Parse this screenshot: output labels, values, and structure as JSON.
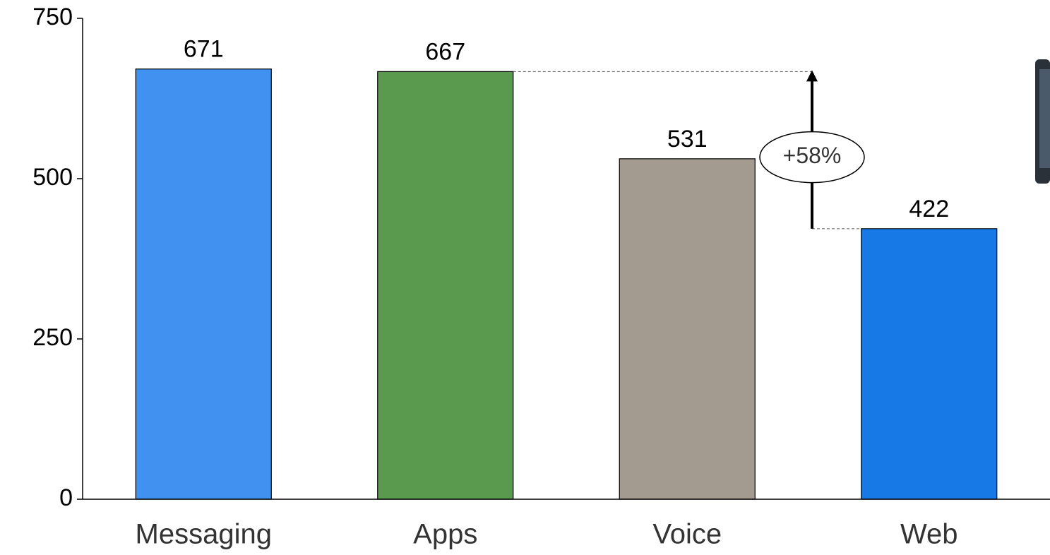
{
  "chart_data": {
    "type": "bar",
    "categories": [
      "Messaging",
      "Apps",
      "Voice",
      "Web"
    ],
    "values": [
      671,
      667,
      531,
      422
    ],
    "colors": [
      "#4192f0",
      "#5a9a4e",
      "#a39a90",
      "#1779e6"
    ],
    "ylim": [
      0,
      750
    ],
    "yticks": [
      0,
      250,
      500,
      750
    ],
    "annotation": "+58%"
  }
}
